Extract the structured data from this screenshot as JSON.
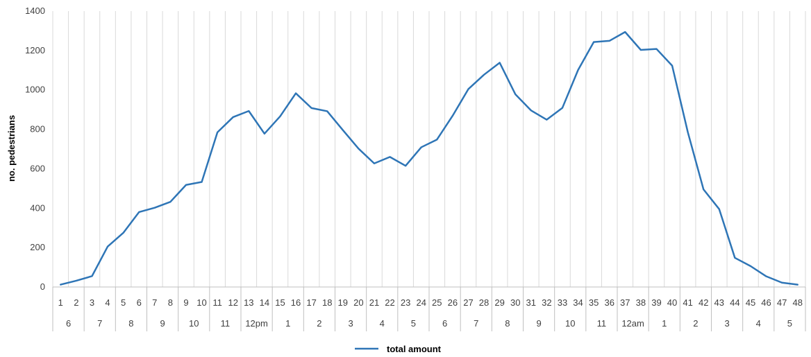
{
  "chart_data": {
    "type": "line",
    "ylabel": "no. pedestrians",
    "ylim": [
      0,
      1400
    ],
    "yticks": [
      0,
      200,
      400,
      600,
      800,
      1000,
      1200,
      1400
    ],
    "grid": "vertical",
    "categories": [
      "1",
      "2",
      "3",
      "4",
      "5",
      "6",
      "7",
      "8",
      "9",
      "10",
      "11",
      "12",
      "13",
      "14",
      "15",
      "16",
      "17",
      "18",
      "19",
      "20",
      "21",
      "22",
      "23",
      "24",
      "25",
      "26",
      "27",
      "28",
      "29",
      "30",
      "31",
      "32",
      "33",
      "34",
      "35",
      "36",
      "37",
      "38",
      "39",
      "40",
      "41",
      "42",
      "43",
      "44",
      "45",
      "46",
      "47",
      "48"
    ],
    "group_labels": [
      "6",
      "7",
      "8",
      "9",
      "10",
      "11",
      "12pm",
      "1",
      "2",
      "3",
      "4",
      "5",
      "6",
      "7",
      "8",
      "9",
      "10",
      "11",
      "12am",
      "1",
      "2",
      "3",
      "4",
      "5"
    ],
    "series": [
      {
        "name": "total amount",
        "color": "#2E75B6",
        "values": [
          12,
          32,
          55,
          205,
          275,
          380,
          402,
          432,
          518,
          533,
          785,
          862,
          893,
          778,
          866,
          983,
          908,
          892,
          796,
          702,
          627,
          660,
          615,
          709,
          748,
          869,
          1004,
          1077,
          1138,
          978,
          896,
          849,
          909,
          1101,
          1243,
          1249,
          1294,
          1203,
          1208,
          1123,
          785,
          495,
          395,
          148,
          106,
          54,
          22,
          12
        ]
      }
    ],
    "legend": {
      "position": "bottom",
      "label": "total amount"
    }
  }
}
